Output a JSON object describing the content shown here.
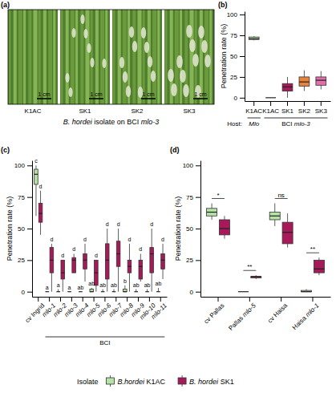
{
  "photo_panel": {
    "panel_label": "(a)",
    "images": [
      "K1AC",
      "SK1",
      "SK2",
      "SK3"
    ],
    "scale_bar": "1 cm",
    "caption": "B. hordei isolate on BCI mlo-3"
  },
  "chart_data": [
    {
      "type": "box",
      "panel_label": "(b)",
      "y_label": "Penetration rate (%)",
      "categories": [
        "K1AC",
        "K1AC",
        "SK1",
        "SK2",
        "SK3"
      ],
      "ylim": [
        -4,
        104
      ],
      "yticks": [
        0,
        25,
        50,
        75,
        100
      ],
      "group_label": "Host:",
      "groups": [
        {
          "label": "Mlo",
          "span": [
            0,
            0
          ]
        },
        {
          "label": "BCI mlo-3",
          "span": [
            1,
            4
          ]
        }
      ],
      "series": [
        {
          "colors": [
            "#b5e3a5",
            "#b5e3a5",
            "#a8195a",
            "#e8833a",
            "#e070a8"
          ],
          "min": [
            69,
            0,
            0,
            8,
            10
          ],
          "q1": [
            70,
            0,
            8,
            14,
            15
          ],
          "median": [
            71,
            0,
            13,
            19,
            21
          ],
          "q3": [
            73,
            0,
            17,
            25,
            25
          ],
          "max": [
            74,
            0,
            25,
            33,
            32
          ]
        }
      ]
    },
    {
      "type": "box",
      "panel_label": "(c)",
      "y_label": "Penetration rate (%)",
      "categories": [
        "cv Ingrid",
        "mlo-1",
        "mlo-2",
        "mlo-3",
        "mlo-4",
        "mlo-5",
        "mlo-6",
        "mlo-7",
        "mlo-8",
        "mlo-9",
        "mlo-10",
        "mlo-11"
      ],
      "ylim": [
        -4,
        104
      ],
      "yticks": [
        0,
        25,
        50,
        75,
        100
      ],
      "groups": [
        {
          "label": "BCI",
          "span": [
            1,
            11
          ]
        }
      ],
      "legend": "bottom",
      "legend_title": "Isolate",
      "series": [
        {
          "name": "B.hordei K1AC",
          "color": "#b5e3a5",
          "min": [
            60,
            0,
            0,
            0,
            0,
            0,
            0,
            0,
            0,
            0,
            0,
            0
          ],
          "q1": [
            85,
            0,
            0,
            0,
            0,
            0,
            0,
            0,
            0,
            0,
            0,
            0
          ],
          "median": [
            93,
            0,
            0,
            0,
            0,
            0,
            0,
            0,
            0,
            0,
            0,
            0
          ],
          "q3": [
            97,
            0,
            0,
            0,
            0,
            2,
            0,
            0,
            2,
            0,
            0,
            0
          ],
          "max": [
            100,
            0,
            2,
            0,
            0,
            3,
            2,
            2,
            5,
            2,
            2,
            3
          ],
          "letters": [
            "c",
            "a",
            "a",
            "a",
            "ab",
            "ab",
            "ab",
            "ab",
            "b",
            "ab",
            "ab",
            "ab"
          ]
        },
        {
          "name": "B. hordei SK1",
          "color": "#a8195a",
          "min": [
            45,
            0,
            0,
            15,
            8,
            0,
            0,
            0,
            0,
            8,
            0,
            10
          ],
          "q1": [
            55,
            15,
            10,
            15,
            18,
            5,
            10,
            20,
            15,
            10,
            15,
            18
          ],
          "median": [
            62,
            25,
            15,
            25,
            25,
            15,
            25,
            30,
            20,
            20,
            30,
            25
          ],
          "q3": [
            70,
            35,
            25,
            27,
            30,
            25,
            38,
            40,
            25,
            25,
            35,
            30
          ],
          "max": [
            80,
            38,
            25,
            30,
            38,
            25,
            50,
            50,
            38,
            30,
            50,
            38
          ],
          "letters": [
            "d",
            "d",
            "d",
            "d",
            "d",
            "d",
            "d",
            "d",
            "d",
            "d",
            "d",
            "d"
          ]
        }
      ]
    },
    {
      "type": "box",
      "panel_label": "(d)",
      "y_label": "Penetration rate (%)",
      "categories": [
        "cv Pallas",
        "Pallas mlo-5",
        "cv Haisa",
        "Haisa mlo-1"
      ],
      "ylim": [
        -4,
        104
      ],
      "yticks": [
        0,
        25,
        50,
        75,
        100
      ],
      "significance": [
        "*",
        "**",
        "ns",
        "**"
      ],
      "series": [
        {
          "name": "B.hordei K1AC",
          "color": "#b5e3a5",
          "min": [
            57,
            0,
            52,
            0
          ],
          "q1": [
            60,
            0,
            57,
            0
          ],
          "median": [
            63,
            0,
            60,
            0
          ],
          "q3": [
            66,
            0,
            63,
            1
          ],
          "max": [
            70,
            0,
            70,
            2
          ]
        },
        {
          "name": "B. hordei SK1",
          "color": "#a8195a",
          "min": [
            42,
            10,
            35,
            13
          ],
          "q1": [
            45,
            11,
            38,
            15
          ],
          "median": [
            50,
            12,
            47,
            18
          ],
          "q3": [
            57,
            12,
            55,
            25
          ],
          "max": [
            60,
            13,
            62,
            27
          ]
        }
      ]
    }
  ]
}
